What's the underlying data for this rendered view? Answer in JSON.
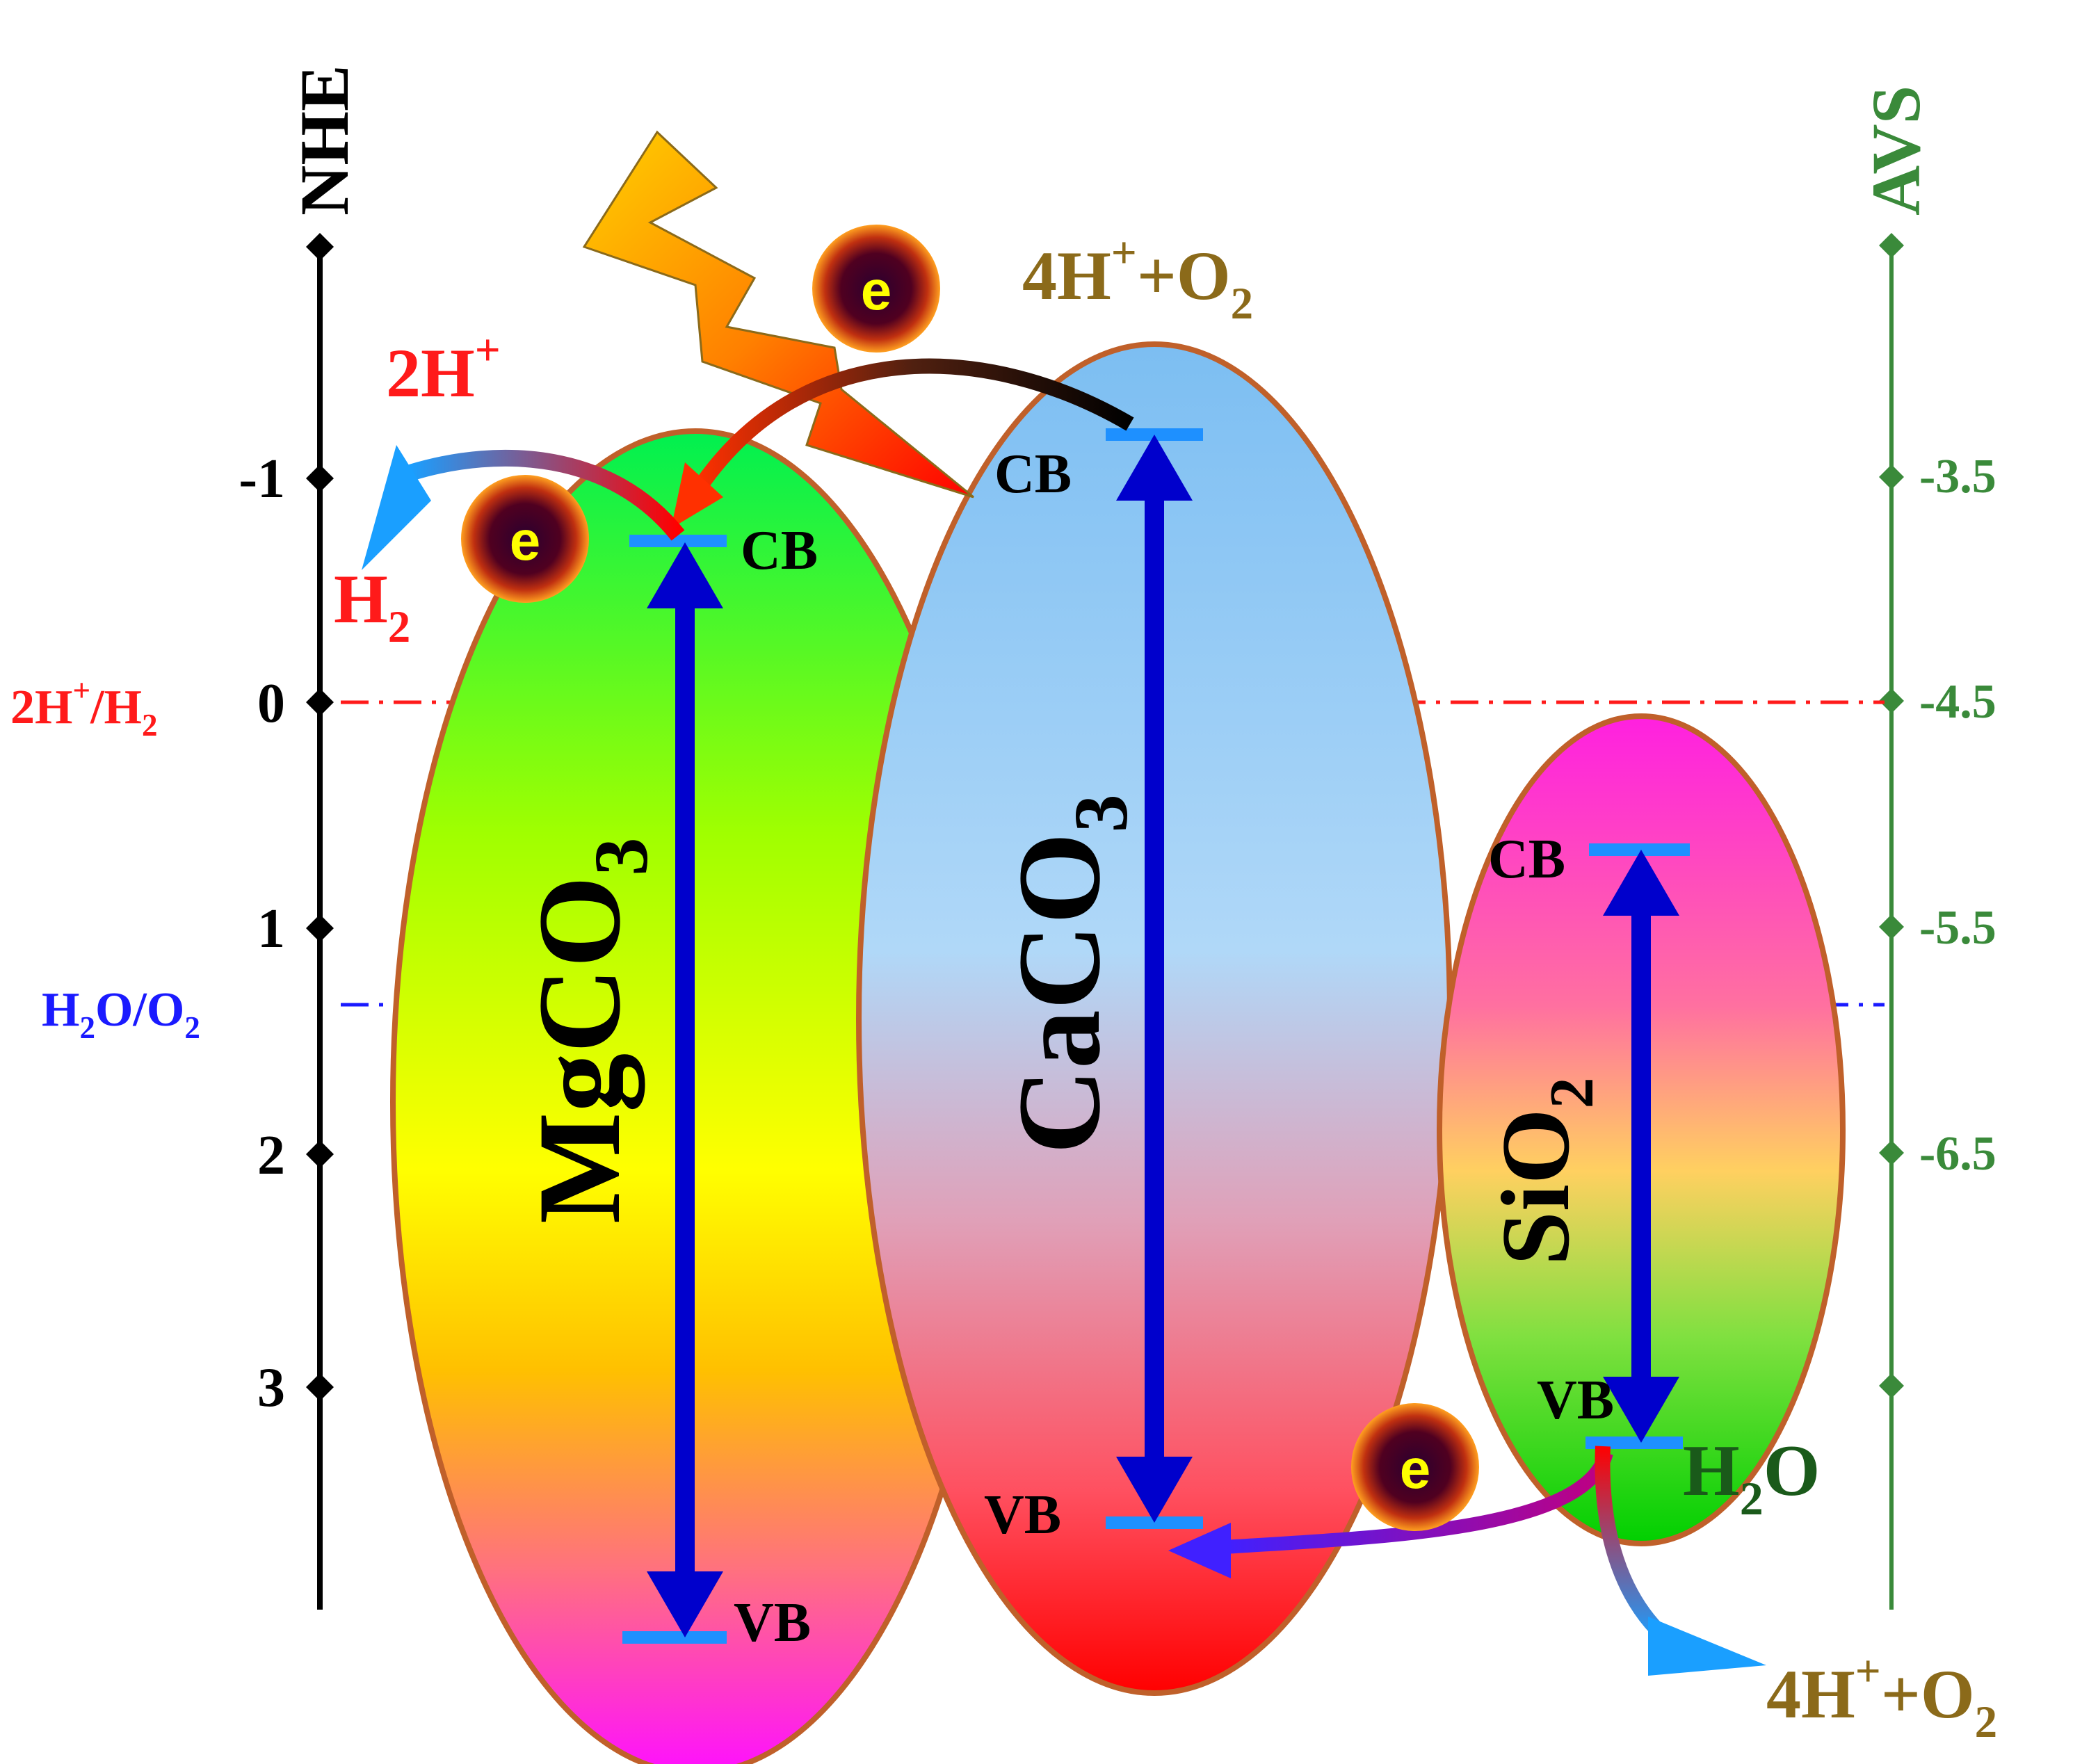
{
  "axes": {
    "left_title": "NHE",
    "right_title": "AVS",
    "left_ticks": [
      "-1",
      "0",
      "1",
      "2",
      "3"
    ],
    "right_ticks": [
      "-3.5",
      "-4.5",
      "-5.5",
      "-6.5"
    ]
  },
  "levels": {
    "h_line": "2H",
    "h_sup": "+",
    "h_slash": "/H",
    "h_sub": "2",
    "o_h": "H",
    "o_h_sub": "2",
    "o_rest": "O/O",
    "o_sub": "2"
  },
  "materials": {
    "mg": {
      "main": "MgCO",
      "sub": "3"
    },
    "ca": {
      "main": "CaCO",
      "sub": "3"
    },
    "si": {
      "main": "SiO",
      "sub": "2"
    }
  },
  "bands": {
    "cb": "CB",
    "vb": "VB"
  },
  "species": {
    "electron": "e",
    "two_h": "2H",
    "plus": "+",
    "h2_main": "H",
    "h2_sub": "2",
    "o2_prefix": "4H",
    "o2_mid": "+O",
    "o2_sub": "2",
    "water_h": "H",
    "water_sub": "2",
    "water_o": "O"
  },
  "colors": {
    "axis_left": "#000000",
    "axis_right": "#3a8a3a",
    "level_h": "#ff1a1a",
    "level_o": "#1a1aff",
    "band_arrow": "#0000cc",
    "band_edge": "#1e90ff",
    "ellipse_stroke": "#c0602a",
    "species_brown": "#8b6a1a"
  }
}
